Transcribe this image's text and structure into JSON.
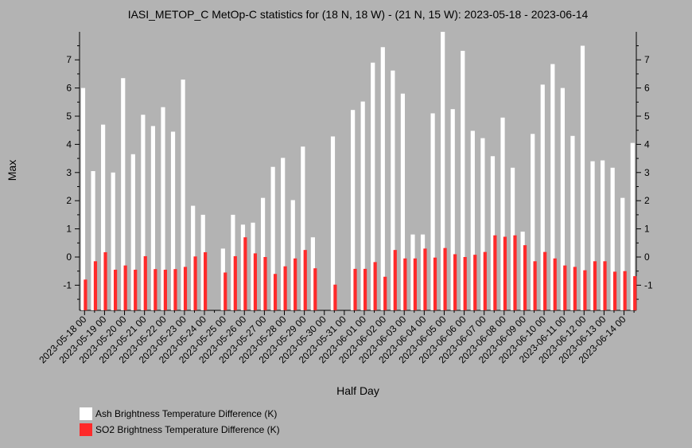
{
  "chart_data": {
    "type": "bar",
    "title": "IASI_METOP_C MetOp-C statistics for (18 N, 18 W) - (21 N, 15 W): 2023-05-18 - 2023-06-14",
    "xlabel": "Half Day",
    "ylabel": "Max",
    "ylim": [
      -1.9,
      8.0
    ],
    "yticks": [
      -1,
      0,
      1,
      2,
      3,
      4,
      5,
      6,
      7
    ],
    "x_tick_labels": [
      "2023-05-18 00",
      "2023-05-19 00",
      "2023-05-20 00",
      "2023-05-21 00",
      "2023-05-22 00",
      "2023-05-23 00",
      "2023-05-24 00",
      "2023-05-25 00",
      "2023-05-26 00",
      "2023-05-27 00",
      "2023-05-28 00",
      "2023-05-29 00",
      "2023-05-30 00",
      "2023-05-31 00",
      "2023-06-01 00",
      "2023-06-02 00",
      "2023-06-03 00",
      "2023-06-04 00",
      "2023-06-05 00",
      "2023-06-06 00",
      "2023-06-07 00",
      "2023-06-08 00",
      "2023-06-09 00",
      "2023-06-10 00",
      "2023-06-11 00",
      "2023-06-12 00",
      "2023-06-13 00",
      "2023-06-14 00"
    ],
    "grid": false,
    "legend_position": "bottom-left",
    "series": [
      {
        "name": "Ash Brightness Temperature Difference (K)",
        "color": "#ffffff",
        "values": [
          6.0,
          3.05,
          4.7,
          3.0,
          6.35,
          3.65,
          5.05,
          4.65,
          5.32,
          4.45,
          6.3,
          1.82,
          1.5,
          null,
          0.3,
          1.5,
          1.15,
          1.22,
          2.1,
          3.2,
          3.52,
          2.02,
          3.92,
          0.7,
          null,
          4.28,
          null,
          5.22,
          5.52,
          6.9,
          7.45,
          6.62,
          5.8,
          0.8,
          0.8,
          5.1,
          8.0,
          5.25,
          7.32,
          4.48,
          4.22,
          3.58,
          4.95,
          3.17,
          0.9,
          4.37,
          6.12,
          6.85,
          6.0,
          4.3,
          7.5,
          3.4,
          3.43,
          3.17,
          2.1,
          4.05
        ],
        "missing_label": "absent/empty"
      },
      {
        "name": "SO2 Brightness Temperature Difference (K)",
        "color": "#ff2a2a",
        "values": [
          -0.8,
          -0.15,
          0.17,
          -0.45,
          -0.3,
          -0.45,
          0.03,
          -0.43,
          -0.45,
          -0.43,
          -0.35,
          0.02,
          0.17,
          null,
          -0.55,
          0.03,
          0.7,
          0.13,
          0.0,
          -0.6,
          -0.33,
          -0.05,
          0.25,
          -0.4,
          null,
          -0.98,
          null,
          -0.42,
          -0.42,
          -0.18,
          -0.7,
          0.25,
          -0.05,
          -0.05,
          0.3,
          -0.02,
          0.32,
          0.1,
          0.0,
          0.08,
          0.18,
          0.77,
          0.72,
          0.77,
          0.42,
          -0.15,
          0.18,
          -0.05,
          -0.3,
          -0.35,
          -0.47,
          -0.15,
          -0.15,
          -0.52,
          -0.5,
          -0.68
        ]
      }
    ]
  }
}
